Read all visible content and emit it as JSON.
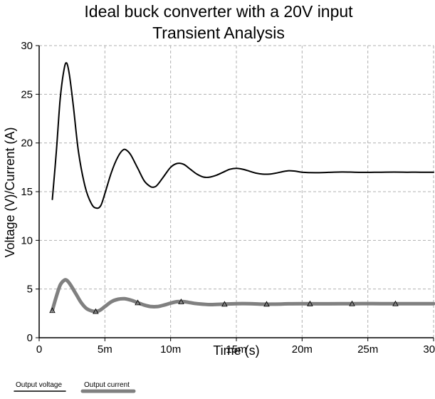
{
  "chart_data": {
    "type": "line",
    "title": "Ideal buck converter with a 20V input",
    "subtitle": "Transient Analysis",
    "xlabel": "Time (s)",
    "ylabel": "Voltage (V)/Current (A)",
    "xlim": [
      0,
      0.03
    ],
    "ylim": [
      0,
      30
    ],
    "grid": true,
    "legend_position": "bottom-left",
    "x_ticks": [
      {
        "value": 0,
        "label": "0"
      },
      {
        "value": 0.005,
        "label": "5m"
      },
      {
        "value": 0.01,
        "label": "10m"
      },
      {
        "value": 0.015,
        "label": "15m"
      },
      {
        "value": 0.02,
        "label": "20m"
      },
      {
        "value": 0.025,
        "label": "25m"
      },
      {
        "value": 0.03,
        "label": "30m"
      }
    ],
    "y_ticks": [
      {
        "value": 0,
        "label": "0"
      },
      {
        "value": 5,
        "label": "5"
      },
      {
        "value": 10,
        "label": "10"
      },
      {
        "value": 15,
        "label": "15"
      },
      {
        "value": 20,
        "label": "20"
      },
      {
        "value": 25,
        "label": "25"
      },
      {
        "value": 30,
        "label": "30"
      }
    ],
    "series": [
      {
        "name": "Output voltage",
        "color": "#000000",
        "x": [
          0.001,
          0.0013,
          0.0016,
          0.0019,
          0.0021,
          0.0023,
          0.0026,
          0.003,
          0.0035,
          0.004,
          0.0044,
          0.0047,
          0.005,
          0.0055,
          0.006,
          0.0064,
          0.0067,
          0.007,
          0.0075,
          0.008,
          0.0085,
          0.0088,
          0.009,
          0.0095,
          0.01,
          0.0105,
          0.011,
          0.0115,
          0.012,
          0.0125,
          0.013,
          0.0135,
          0.014,
          0.0145,
          0.015,
          0.0155,
          0.016,
          0.0165,
          0.017,
          0.0175,
          0.018,
          0.0185,
          0.019,
          0.0195,
          0.02,
          0.021,
          0.022,
          0.023,
          0.024,
          0.025,
          0.026,
          0.027,
          0.028,
          0.029,
          0.03
        ],
        "y": [
          14.2,
          19.0,
          24.5,
          27.6,
          28.2,
          27.0,
          23.8,
          19.0,
          15.5,
          13.7,
          13.3,
          13.6,
          14.8,
          17.0,
          18.6,
          19.3,
          19.2,
          18.7,
          17.4,
          16.1,
          15.5,
          15.5,
          15.7,
          16.6,
          17.5,
          17.9,
          17.8,
          17.3,
          16.8,
          16.5,
          16.5,
          16.7,
          17.0,
          17.3,
          17.4,
          17.3,
          17.1,
          16.9,
          16.8,
          16.8,
          16.9,
          17.05,
          17.15,
          17.1,
          17.0,
          16.95,
          16.98,
          17.02,
          17.0,
          16.98,
          17.0,
          17.01,
          17.0,
          17.0,
          16.99
        ]
      },
      {
        "name": "Output current",
        "color": "#808080",
        "x": [
          0.001,
          0.0013,
          0.0016,
          0.0019,
          0.0021,
          0.0024,
          0.0028,
          0.0032,
          0.0036,
          0.004,
          0.0043,
          0.0046,
          0.005,
          0.0055,
          0.006,
          0.0065,
          0.007,
          0.0075,
          0.008,
          0.0085,
          0.009,
          0.0095,
          0.01,
          0.0105,
          0.011,
          0.0115,
          0.012,
          0.013,
          0.014,
          0.015,
          0.016,
          0.017,
          0.018,
          0.019,
          0.02,
          0.022,
          0.024,
          0.026,
          0.028,
          0.03
        ],
        "y": [
          2.8,
          4.2,
          5.4,
          5.9,
          5.9,
          5.4,
          4.5,
          3.6,
          3.0,
          2.75,
          2.7,
          2.8,
          3.2,
          3.7,
          3.95,
          4.0,
          3.85,
          3.6,
          3.35,
          3.2,
          3.2,
          3.35,
          3.55,
          3.7,
          3.7,
          3.6,
          3.5,
          3.4,
          3.45,
          3.5,
          3.5,
          3.45,
          3.45,
          3.48,
          3.5,
          3.48,
          3.5,
          3.5,
          3.5,
          3.5
        ],
        "markers_x": [
          0.001,
          0.0043,
          0.0075,
          0.0108,
          0.0141,
          0.0173,
          0.0206,
          0.0238,
          0.0271
        ]
      }
    ]
  }
}
